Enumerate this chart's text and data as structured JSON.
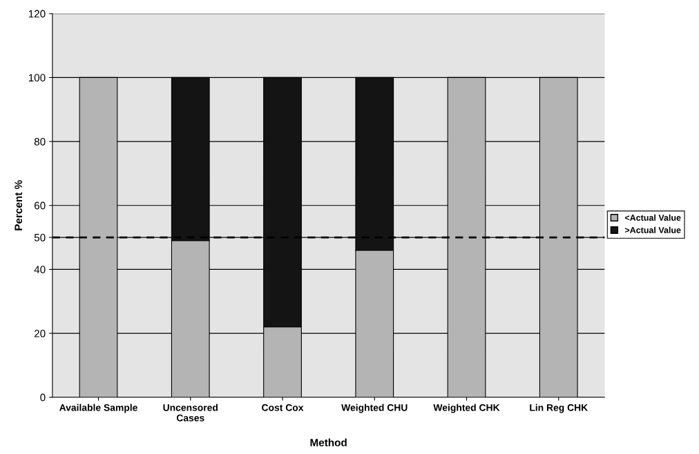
{
  "chart_data": {
    "type": "bar",
    "stacked": true,
    "xlabel": "Method",
    "ylabel": "Percent %",
    "categories": [
      "Available Sample",
      "Uncensored\nCases",
      "Cost Cox",
      "Weighted CHU",
      "Weighted CHK",
      "Lin Reg CHK"
    ],
    "series": [
      {
        "name": "<Actual Value",
        "color": "#b4b4b4",
        "values": [
          100,
          49,
          22,
          46,
          100,
          100
        ]
      },
      {
        "name": ">Actual Value",
        "color": "#141414",
        "values": [
          0,
          51,
          78,
          54,
          0,
          0
        ]
      }
    ],
    "ylim": [
      0,
      120
    ],
    "yticks": [
      0,
      20,
      40,
      50,
      60,
      80,
      100,
      120
    ],
    "ref_lines": [
      {
        "axis": "y",
        "value": 50,
        "color": "#000000",
        "line_style": "dashed"
      }
    ],
    "grid": "y",
    "legend": "right"
  }
}
